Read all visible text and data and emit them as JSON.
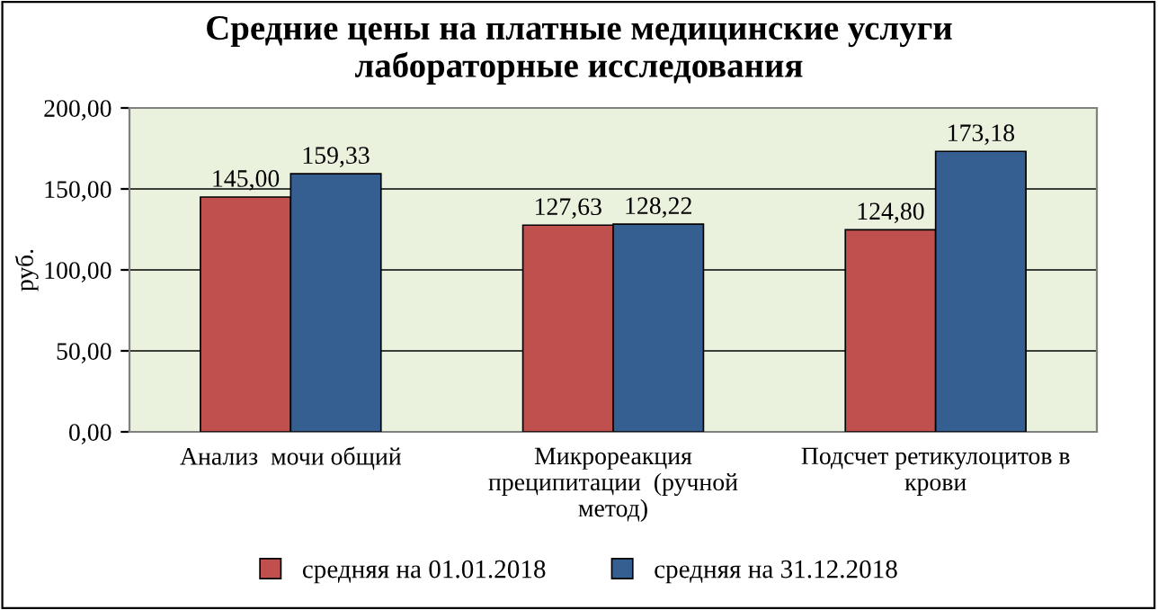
{
  "chart_data": {
    "type": "bar",
    "title": "Средние цены на платные медицинские услуги\nлабораторные исследования",
    "ylabel": "руб.",
    "categories": [
      "Анализ  мочи общий",
      "Микрореакция\nпреципитации  (ручной\nметод)",
      "Подсчет ретикулоцитов в\nкрови"
    ],
    "series": [
      {
        "name": "средняя на 01.01.2018",
        "color": "#c0504d",
        "values": [
          145.0,
          127.63,
          124.8
        ],
        "value_labels": [
          "145,00",
          "127,63",
          "124,80"
        ]
      },
      {
        "name": "средняя на 31.12.2018",
        "color": "#365f91",
        "values": [
          159.33,
          128.22,
          173.18
        ],
        "value_labels": [
          "159,33",
          "128,22",
          "173,18"
        ]
      }
    ],
    "ylim": [
      0,
      200
    ],
    "yticks": [
      {
        "value": 0,
        "label": "0,00"
      },
      {
        "value": 50,
        "label": "50,00"
      },
      {
        "value": 100,
        "label": "100,00"
      },
      {
        "value": 150,
        "label": "150,00"
      },
      {
        "value": 200,
        "label": "200,00"
      }
    ],
    "grid": "y",
    "legend": "bottom"
  }
}
